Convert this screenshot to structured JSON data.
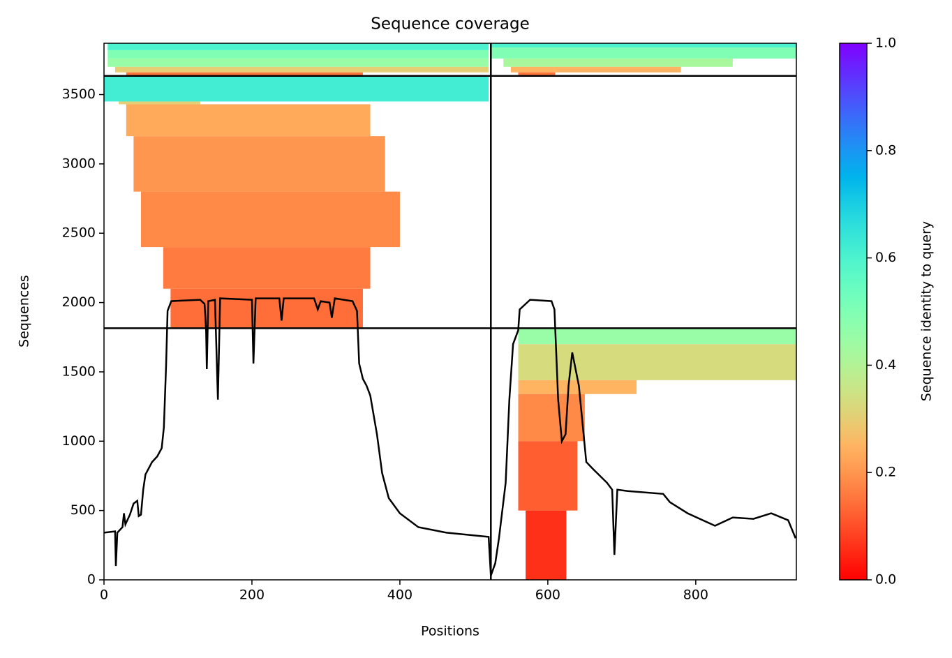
{
  "chart_data": {
    "type": "coverage",
    "title": "Sequence coverage",
    "xlabel": "Positions",
    "ylabel": "Sequences",
    "colorbar_label": "Sequence identity to query",
    "xlim": [
      0,
      936
    ],
    "ylim": [
      0,
      3870
    ],
    "xticks": [
      0,
      200,
      400,
      600,
      800
    ],
    "yticks": [
      0,
      500,
      1000,
      1500,
      2000,
      2500,
      3000,
      3500
    ],
    "clim": [
      0,
      1
    ],
    "cticks": [
      {
        "value": 0,
        "label": "0.0"
      },
      0.2,
      0.4,
      0.6,
      0.8,
      {
        "value": 1,
        "label": "1.0"
      }
    ],
    "colormap": "rainbow_r",
    "line_color": "#000000",
    "divider_x": [
      523
    ],
    "divider_y": [
      1815,
      3635
    ],
    "blocks": [
      [
        5,
        520,
        3820,
        3870,
        0.6
      ],
      [
        5,
        520,
        3760,
        3820,
        0.5
      ],
      [
        5,
        520,
        3700,
        3760,
        0.45
      ],
      [
        15,
        520,
        3660,
        3700,
        0.3
      ],
      [
        30,
        350,
        3640,
        3660,
        0.15
      ],
      [
        0,
        520,
        3450,
        3630,
        0.62
      ],
      [
        20,
        130,
        3430,
        3450,
        0.3
      ],
      [
        30,
        360,
        3200,
        3430,
        0.23
      ],
      [
        40,
        380,
        2800,
        3200,
        0.2
      ],
      [
        50,
        400,
        2400,
        2800,
        0.18
      ],
      [
        80,
        360,
        2100,
        2400,
        0.16
      ],
      [
        90,
        350,
        1820,
        2100,
        0.14
      ],
      [
        523,
        936,
        3840,
        3870,
        0.6
      ],
      [
        523,
        936,
        3760,
        3840,
        0.5
      ],
      [
        540,
        850,
        3700,
        3760,
        0.42
      ],
      [
        550,
        780,
        3660,
        3700,
        0.25
      ],
      [
        560,
        610,
        3640,
        3660,
        0.15
      ],
      [
        560,
        936,
        1700,
        1810,
        0.45
      ],
      [
        560,
        936,
        1440,
        1700,
        0.33
      ],
      [
        560,
        720,
        1340,
        1440,
        0.25
      ],
      [
        560,
        650,
        1000,
        1340,
        0.18
      ],
      [
        560,
        640,
        500,
        1000,
        0.12
      ],
      [
        570,
        625,
        0,
        500,
        0.06
      ]
    ],
    "line": {
      "x": [
        0,
        15,
        16,
        18,
        25,
        27,
        29,
        35,
        40,
        45,
        47,
        50,
        53,
        56,
        65,
        72,
        78,
        81,
        84,
        86,
        91,
        130,
        136,
        138,
        139,
        141,
        150,
        154,
        157,
        200,
        202,
        205,
        237,
        240,
        243,
        284,
        289,
        293,
        305,
        308,
        312,
        336,
        342,
        345,
        350,
        355,
        360,
        369,
        376,
        385,
        400,
        425,
        463,
        520,
        523,
        529,
        534,
        543,
        548,
        553,
        560,
        562,
        576,
        605,
        609,
        614,
        619,
        624,
        628,
        633,
        642,
        652,
        661,
        680,
        687,
        690,
        694,
        708,
        756,
        765,
        789,
        826,
        850,
        878,
        902,
        925,
        935
      ],
      "values": [
        340,
        350,
        100,
        340,
        380,
        480,
        400,
        470,
        550,
        570,
        460,
        470,
        650,
        760,
        850,
        890,
        950,
        1100,
        1550,
        1940,
        2010,
        2020,
        1990,
        1800,
        1520,
        2010,
        2020,
        1300,
        2030,
        2020,
        1560,
        2030,
        2030,
        1870,
        2030,
        2030,
        1950,
        2010,
        2000,
        1890,
        2030,
        2010,
        1940,
        1560,
        1450,
        1400,
        1330,
        1050,
        770,
        590,
        480,
        380,
        340,
        310,
        30,
        120,
        300,
        700,
        1300,
        1700,
        1800,
        1950,
        2020,
        2010,
        1950,
        1300,
        1000,
        1050,
        1400,
        1640,
        1400,
        850,
        800,
        700,
        650,
        180,
        650,
        640,
        620,
        560,
        480,
        390,
        450,
        440,
        480,
        430,
        300
      ]
    }
  }
}
